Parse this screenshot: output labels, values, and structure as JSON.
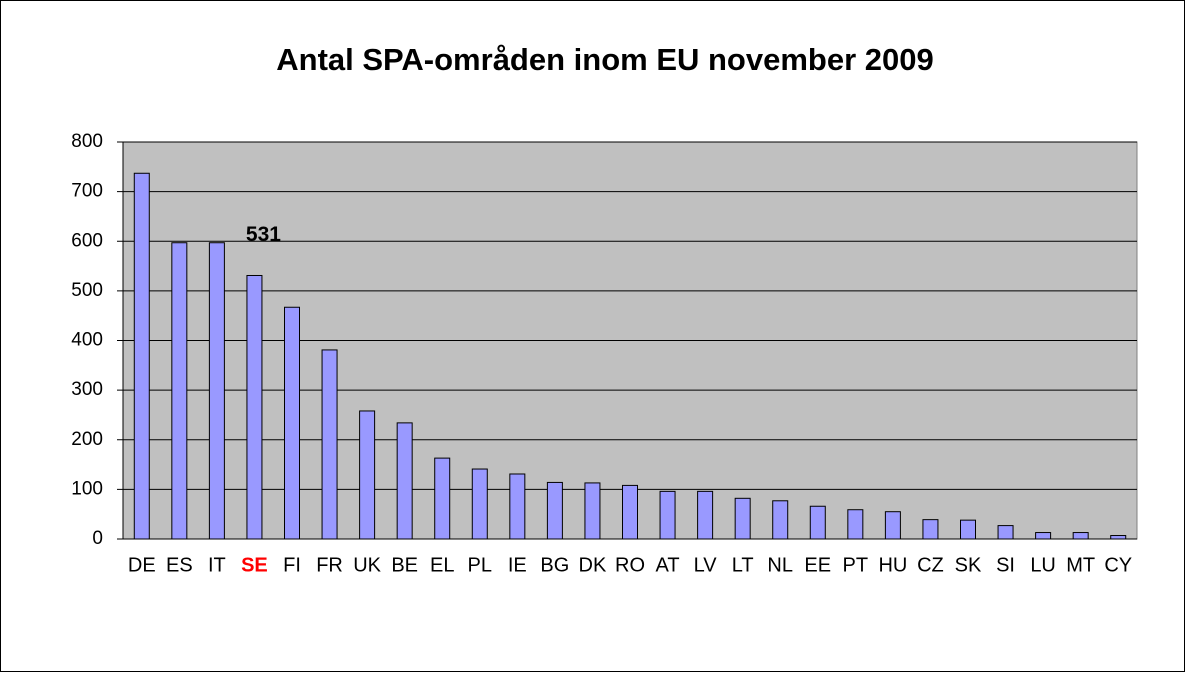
{
  "chart_data": {
    "type": "bar",
    "title": "Antal SPA-områden inom EU november 2009",
    "categories": [
      "DE",
      "ES",
      "IT",
      "SE",
      "FI",
      "FR",
      "UK",
      "BE",
      "EL",
      "PL",
      "IE",
      "BG",
      "DK",
      "RO",
      "AT",
      "LV",
      "LT",
      "NL",
      "EE",
      "PT",
      "HU",
      "CZ",
      "SK",
      "SI",
      "LU",
      "MT",
      "CY"
    ],
    "values": [
      737,
      597,
      597,
      531,
      467,
      381,
      258,
      234,
      163,
      141,
      131,
      114,
      113,
      108,
      96,
      96,
      82,
      77,
      66,
      59,
      55,
      39,
      38,
      27,
      13,
      13,
      7
    ],
    "color": "#9999ff",
    "plot_background": "#c0c0c0",
    "highlight": "SE",
    "highlight_color": "#ff0000",
    "ylim": [
      0,
      800
    ],
    "yticks": [
      0,
      100,
      200,
      300,
      400,
      500,
      600,
      700,
      800
    ],
    "grid": true
  }
}
